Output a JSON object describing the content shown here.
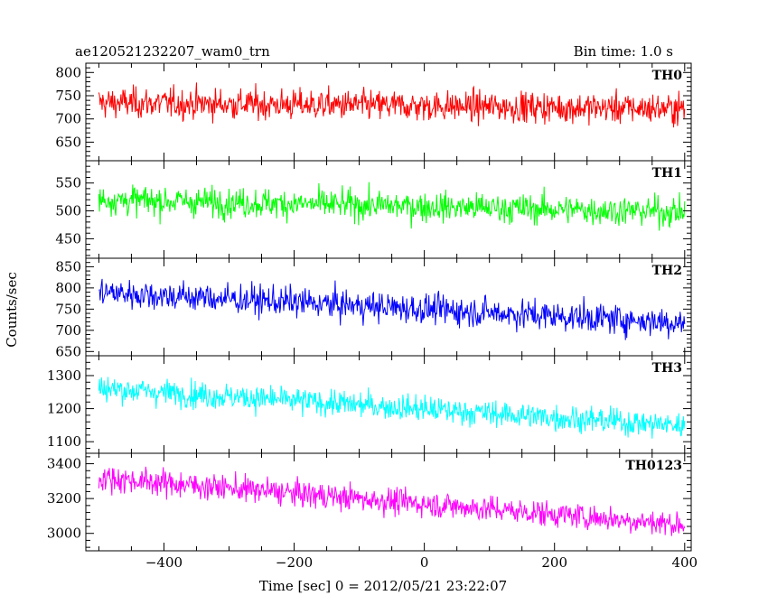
{
  "header": {
    "left": "ae120521232207_wam0_trn",
    "right": "Bin time: 1.0 s"
  },
  "chart_data": {
    "type": "line",
    "xlabel": "Time [sec] 0 = 2012/05/21 23:22:07",
    "ylabel": "Counts/sec",
    "xlim": [
      -520,
      410
    ],
    "xticks": [
      -400,
      -200,
      0,
      200,
      400
    ],
    "x_start": -500,
    "x_end": 400,
    "bin": 1.0,
    "panels": [
      {
        "name": "TH0",
        "color": "#ff0000",
        "ylim": [
          610,
          820
        ],
        "yticks": [
          650,
          700,
          750,
          800
        ],
        "trend": [
          [
            -500,
            735
          ],
          [
            400,
            722
          ]
        ],
        "noise": 30
      },
      {
        "name": "TH1",
        "color": "#00ff00",
        "ylim": [
          415,
          590
        ],
        "yticks": [
          450,
          500,
          550
        ],
        "trend": [
          [
            -500,
            520
          ],
          [
            400,
            498
          ]
        ],
        "noise": 24
      },
      {
        "name": "TH2",
        "color": "#0000ff",
        "ylim": [
          640,
          870
        ],
        "yticks": [
          650,
          700,
          750,
          800,
          850
        ],
        "trend": [
          [
            -500,
            790
          ],
          [
            400,
            718
          ]
        ],
        "noise": 32
      },
      {
        "name": "TH3",
        "color": "#00ffff",
        "ylim": [
          1065,
          1360
        ],
        "yticks": [
          1100,
          1200,
          1300
        ],
        "trend": [
          [
            -500,
            1262
          ],
          [
            400,
            1148
          ]
        ],
        "noise": 36
      },
      {
        "name": "TH0123",
        "color": "#ff00ff",
        "ylim": [
          2900,
          3460
        ],
        "yticks": [
          3000,
          3200,
          3400
        ],
        "trend": [
          [
            -500,
            3320
          ],
          [
            400,
            3050
          ]
        ],
        "noise": 68
      }
    ]
  }
}
